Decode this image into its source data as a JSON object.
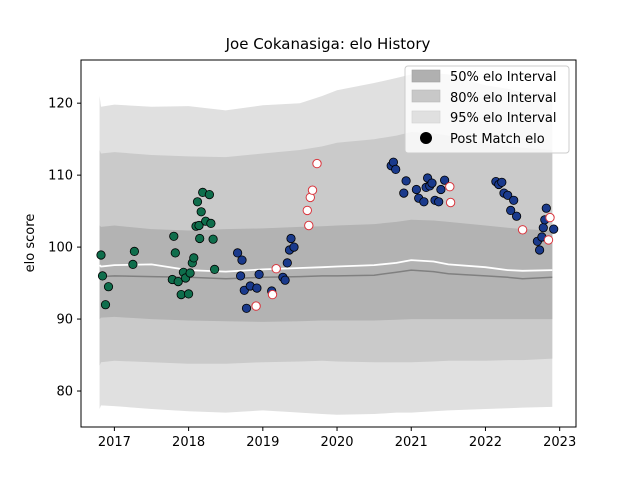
{
  "chart_data": {
    "type": "scatter",
    "title": "Joe Cokanasiga: elo History",
    "xlabel": "",
    "ylabel": "elo score",
    "xlim": [
      2016.55,
      2023.22
    ],
    "ylim": [
      75,
      126
    ],
    "x_ticks": [
      2017,
      2018,
      2019,
      2020,
      2021,
      2022,
      2023
    ],
    "x_tick_labels": [
      "2017",
      "2018",
      "2019",
      "2020",
      "2021",
      "2022",
      "2023"
    ],
    "y_ticks": [
      80,
      90,
      100,
      110,
      120
    ],
    "y_tick_labels": [
      "80",
      "90",
      "100",
      "110",
      "120"
    ],
    "grid": false,
    "legend_placement": "top-right",
    "legend": [
      {
        "label": "50% elo Interval",
        "kind": "band",
        "color": "#b0b0b0"
      },
      {
        "label": "80% elo Interval",
        "kind": "band",
        "color": "#c8c8c8"
      },
      {
        "label": "95% elo Interval",
        "kind": "band",
        "color": "#e0e0e0"
      },
      {
        "label": "Post Match elo",
        "kind": "marker",
        "color": "#000000"
      }
    ],
    "colors": {
      "band95": "#e0e0e0",
      "band80": "#cacaca",
      "band50": "#b3b3b3",
      "median": "#ffffff",
      "mean": "#808080",
      "teal": "#0f6e4c",
      "navy": "#1a3a8c",
      "loss_edge": "#d9363e"
    },
    "bands": {
      "x": [
        2016.8,
        2016.82,
        2017.0,
        2017.5,
        2018.0,
        2018.5,
        2019.0,
        2019.5,
        2019.8,
        2020.0,
        2020.5,
        2020.8,
        2021.0,
        2021.3,
        2021.5,
        2022.0,
        2022.3,
        2022.5,
        2022.9
      ],
      "p95_upper": [
        121,
        119.5,
        119.8,
        119.5,
        119.6,
        119.0,
        119.7,
        120.0,
        121.0,
        121.8,
        122.8,
        123.5,
        124.0,
        124.2,
        124.0,
        122.5,
        122.0,
        121.5,
        121.5
      ],
      "p95_lower": [
        77.5,
        78.0,
        77.9,
        77.5,
        77.2,
        77.0,
        77.3,
        77.0,
        76.8,
        76.7,
        76.8,
        77.0,
        77.0,
        77.2,
        77.3,
        77.5,
        77.6,
        77.7,
        77.8
      ],
      "p80_upper": [
        113.5,
        113.0,
        113.2,
        112.8,
        112.6,
        112.5,
        113.0,
        113.5,
        114.0,
        114.5,
        115.0,
        115.5,
        116.0,
        115.8,
        115.5,
        114.5,
        114.0,
        113.8,
        113.5
      ],
      "p80_lower": [
        83.5,
        84.0,
        84.2,
        84.0,
        83.8,
        83.8,
        84.0,
        84.1,
        84.2,
        84.1,
        84.0,
        84.0,
        84.0,
        84.1,
        84.2,
        84.2,
        84.3,
        84.3,
        84.5
      ],
      "p50_upper": [
        103.0,
        102.8,
        103.0,
        102.5,
        102.3,
        102.5,
        102.6,
        102.8,
        102.9,
        103.0,
        103.2,
        103.5,
        103.8,
        103.7,
        103.5,
        103.0,
        102.7,
        102.5,
        102.3
      ],
      "p50_lower": [
        90.0,
        90.2,
        90.3,
        90.0,
        89.8,
        89.7,
        89.6,
        89.7,
        89.8,
        89.8,
        89.8,
        89.9,
        90.0,
        90.0,
        90.0,
        90.0,
        90.0,
        90.0,
        90.0
      ],
      "median": [
        97.5,
        97.3,
        97.5,
        97.6,
        96.8,
        96.6,
        96.9,
        97.1,
        97.2,
        97.3,
        97.5,
        97.8,
        98.2,
        98.0,
        97.6,
        97.2,
        96.8,
        96.7,
        96.8
      ],
      "mean": [
        95.8,
        95.9,
        96.0,
        95.9,
        95.8,
        95.6,
        95.8,
        95.9,
        96.0,
        96.0,
        96.1,
        96.5,
        96.8,
        96.6,
        96.3,
        96.0,
        95.8,
        95.6,
        95.8
      ]
    },
    "series": [
      {
        "group": "teal",
        "points": [
          [
            2016.82,
            98.9
          ],
          [
            2016.84,
            96.0
          ],
          [
            2016.88,
            92.0
          ],
          [
            2016.92,
            94.5
          ],
          [
            2017.27,
            99.4
          ],
          [
            2017.25,
            97.6
          ],
          [
            2017.78,
            95.5
          ],
          [
            2017.8,
            101.5
          ],
          [
            2017.82,
            99.2
          ],
          [
            2017.86,
            95.2
          ],
          [
            2017.9,
            93.4
          ],
          [
            2017.93,
            96.5
          ],
          [
            2017.96,
            95.7
          ],
          [
            2018.0,
            93.5
          ],
          [
            2018.02,
            96.4
          ],
          [
            2018.05,
            97.8
          ],
          [
            2018.07,
            98.5
          ],
          [
            2018.1,
            102.9
          ],
          [
            2018.12,
            106.3
          ],
          [
            2018.14,
            103.0
          ],
          [
            2018.15,
            101.2
          ],
          [
            2018.17,
            104.9
          ],
          [
            2018.19,
            107.6
          ],
          [
            2018.23,
            103.6
          ],
          [
            2018.28,
            107.3
          ],
          [
            2018.3,
            103.3
          ],
          [
            2018.33,
            101.1
          ],
          [
            2018.35,
            96.9
          ]
        ]
      },
      {
        "group": "navy",
        "points": [
          [
            2018.66,
            99.2
          ],
          [
            2018.7,
            96.0
          ],
          [
            2018.72,
            98.2
          ],
          [
            2018.75,
            94.0
          ],
          [
            2018.78,
            91.5
          ],
          [
            2018.83,
            94.6
          ],
          [
            2018.92,
            94.3
          ],
          [
            2018.95,
            96.2
          ],
          [
            2019.12,
            93.9
          ],
          [
            2019.27,
            95.8
          ],
          [
            2019.3,
            95.4
          ],
          [
            2019.33,
            97.8
          ],
          [
            2019.36,
            99.6
          ],
          [
            2019.38,
            101.2
          ],
          [
            2019.42,
            100.0
          ],
          [
            2020.73,
            111.3
          ],
          [
            2020.76,
            111.8
          ],
          [
            2020.79,
            110.8
          ],
          [
            2020.9,
            107.5
          ],
          [
            2020.93,
            109.2
          ],
          [
            2021.07,
            108.0
          ],
          [
            2021.1,
            106.8
          ],
          [
            2021.17,
            106.3
          ],
          [
            2021.2,
            108.3
          ],
          [
            2021.22,
            109.6
          ],
          [
            2021.25,
            108.5
          ],
          [
            2021.28,
            108.9
          ],
          [
            2021.32,
            106.5
          ],
          [
            2021.37,
            106.3
          ],
          [
            2021.4,
            108.0
          ],
          [
            2021.45,
            109.3
          ],
          [
            2022.14,
            109.1
          ],
          [
            2022.18,
            108.7
          ],
          [
            2022.22,
            109.0
          ],
          [
            2022.25,
            107.5
          ],
          [
            2022.3,
            107.2
          ],
          [
            2022.34,
            105.1
          ],
          [
            2022.38,
            106.5
          ],
          [
            2022.42,
            104.3
          ],
          [
            2022.7,
            100.8
          ],
          [
            2022.73,
            99.6
          ],
          [
            2022.76,
            101.4
          ],
          [
            2022.78,
            102.7
          ],
          [
            2022.8,
            103.8
          ],
          [
            2022.82,
            105.4
          ],
          [
            2022.92,
            102.5
          ]
        ]
      },
      {
        "group": "loss",
        "points": [
          [
            2018.91,
            91.8
          ],
          [
            2019.13,
            93.4
          ],
          [
            2019.18,
            97.0
          ],
          [
            2019.6,
            105.1
          ],
          [
            2019.62,
            103.0
          ],
          [
            2019.64,
            106.9
          ],
          [
            2019.67,
            107.9
          ],
          [
            2019.73,
            111.6
          ],
          [
            2021.52,
            108.4
          ],
          [
            2021.53,
            106.2
          ],
          [
            2022.5,
            102.4
          ],
          [
            2022.85,
            101.0
          ],
          [
            2022.87,
            104.1
          ]
        ]
      }
    ]
  }
}
